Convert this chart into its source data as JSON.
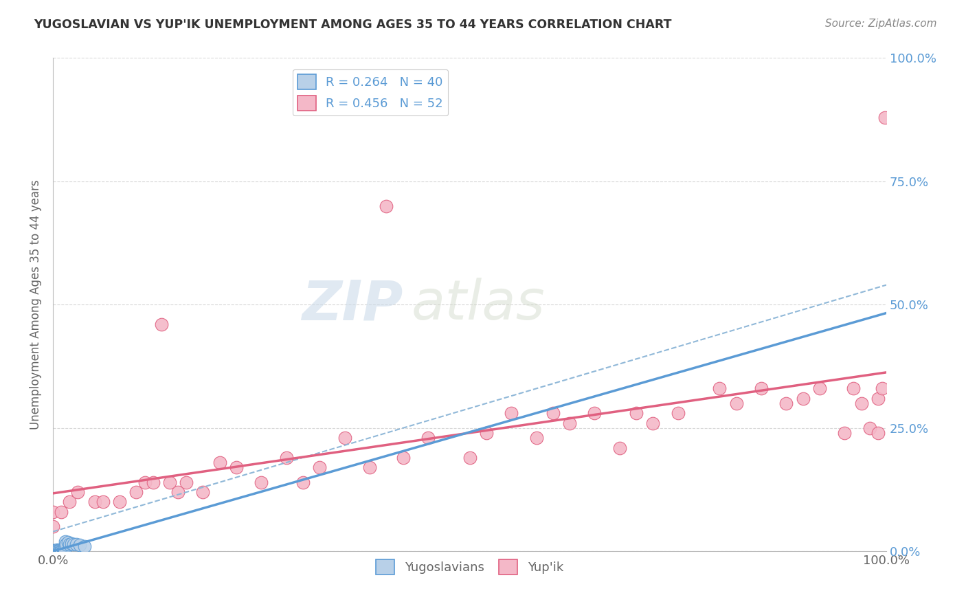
{
  "title": "YUGOSLAVIAN VS YUP'IK UNEMPLOYMENT AMONG AGES 35 TO 44 YEARS CORRELATION CHART",
  "source": "Source: ZipAtlas.com",
  "ylabel": "Unemployment Among Ages 35 to 44 years",
  "xlim": [
    0.0,
    1.0
  ],
  "ylim": [
    0.0,
    1.0
  ],
  "ytick_vals": [
    0.0,
    0.25,
    0.5,
    0.75,
    1.0
  ],
  "ytick_labels": [
    "0.0%",
    "25.0%",
    "50.0%",
    "75.0%",
    "100.0%"
  ],
  "xtick_vals": [
    0.0,
    1.0
  ],
  "xtick_labels": [
    "0.0%",
    "100.0%"
  ],
  "legend1_r": "R = 0.264",
  "legend1_n": "N = 40",
  "legend2_r": "R = 0.456",
  "legend2_n": "N = 52",
  "watermark_zip": "ZIP",
  "watermark_atlas": "atlas",
  "blue_fill": "#b8d0e8",
  "blue_edge": "#5b9bd5",
  "pink_fill": "#f4b8c8",
  "pink_edge": "#e06080",
  "blue_line_color": "#5b9bd5",
  "pink_line_color": "#e06080",
  "dash_line_color": "#90b8d8",
  "grid_color": "#d8d8d8",
  "yugoslavian_x": [
    0.0,
    0.0,
    0.0,
    0.0,
    0.0,
    0.0,
    0.0,
    0.0,
    0.0,
    0.0,
    0.002,
    0.002,
    0.003,
    0.003,
    0.003,
    0.004,
    0.004,
    0.005,
    0.005,
    0.005,
    0.006,
    0.006,
    0.007,
    0.008,
    0.009,
    0.01,
    0.01,
    0.011,
    0.012,
    0.013,
    0.014,
    0.015,
    0.016,
    0.018,
    0.02,
    0.022,
    0.025,
    0.028,
    0.032,
    0.038
  ],
  "yugoslavian_y": [
    0.0,
    0.0,
    0.0,
    0.0,
    0.0,
    0.001,
    0.001,
    0.001,
    0.002,
    0.002,
    0.0,
    0.001,
    0.001,
    0.002,
    0.002,
    0.001,
    0.002,
    0.001,
    0.002,
    0.003,
    0.001,
    0.002,
    0.002,
    0.003,
    0.002,
    0.001,
    0.003,
    0.002,
    0.003,
    0.004,
    0.003,
    0.02,
    0.015,
    0.018,
    0.014,
    0.016,
    0.015,
    0.014,
    0.013,
    0.01
  ],
  "yupik_x": [
    0.0,
    0.0,
    0.01,
    0.02,
    0.03,
    0.05,
    0.06,
    0.08,
    0.1,
    0.11,
    0.12,
    0.13,
    0.14,
    0.15,
    0.16,
    0.18,
    0.2,
    0.22,
    0.25,
    0.28,
    0.3,
    0.32,
    0.35,
    0.38,
    0.4,
    0.42,
    0.45,
    0.5,
    0.52,
    0.55,
    0.58,
    0.6,
    0.62,
    0.65,
    0.68,
    0.7,
    0.72,
    0.75,
    0.8,
    0.82,
    0.85,
    0.88,
    0.9,
    0.92,
    0.95,
    0.96,
    0.97,
    0.98,
    0.99,
    0.99,
    0.995,
    0.998
  ],
  "yupik_y": [
    0.05,
    0.08,
    0.08,
    0.1,
    0.12,
    0.1,
    0.1,
    0.1,
    0.12,
    0.14,
    0.14,
    0.46,
    0.14,
    0.12,
    0.14,
    0.12,
    0.18,
    0.17,
    0.14,
    0.19,
    0.14,
    0.17,
    0.23,
    0.17,
    0.7,
    0.19,
    0.23,
    0.19,
    0.24,
    0.28,
    0.23,
    0.28,
    0.26,
    0.28,
    0.21,
    0.28,
    0.26,
    0.28,
    0.33,
    0.3,
    0.33,
    0.3,
    0.31,
    0.33,
    0.24,
    0.33,
    0.3,
    0.25,
    0.31,
    0.24,
    0.33,
    0.88
  ]
}
